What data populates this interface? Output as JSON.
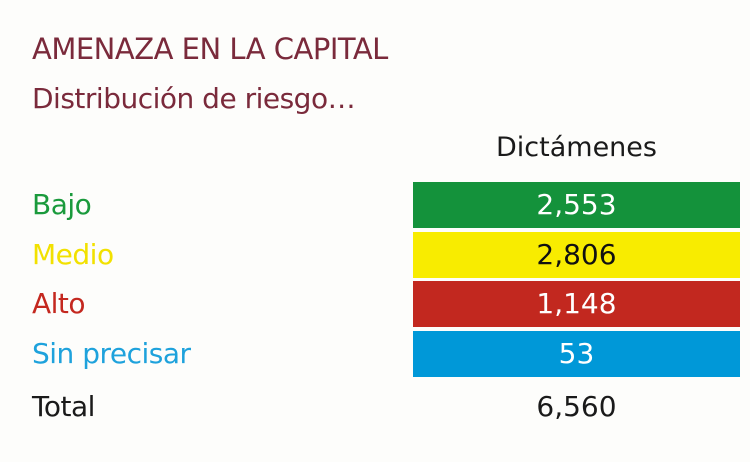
{
  "header": {
    "title": "AMENAZA EN LA CAPITAL",
    "subtitle": "Distribución de riesgo…"
  },
  "table": {
    "column_header": "Dictámenes",
    "rows": [
      {
        "label": "Bajo",
        "value": "2,553",
        "color": "#14923b",
        "label_color": "#1a9a3c",
        "text_color": "#ffffff"
      },
      {
        "label": "Medio",
        "value": "2,806",
        "color": "#f8ec00",
        "label_color": "#f2e100",
        "text_color": "#111111"
      },
      {
        "label": "Alto",
        "value": "1,148",
        "color": "#c2281f",
        "label_color": "#c4281f",
        "text_color": "#ffffff"
      },
      {
        "label": "Sin precisar",
        "value": "53",
        "color": "#0098d8",
        "label_color": "#1ea2dc",
        "text_color": "#ffffff"
      }
    ],
    "total": {
      "label": "Total",
      "value": "6,560"
    }
  }
}
